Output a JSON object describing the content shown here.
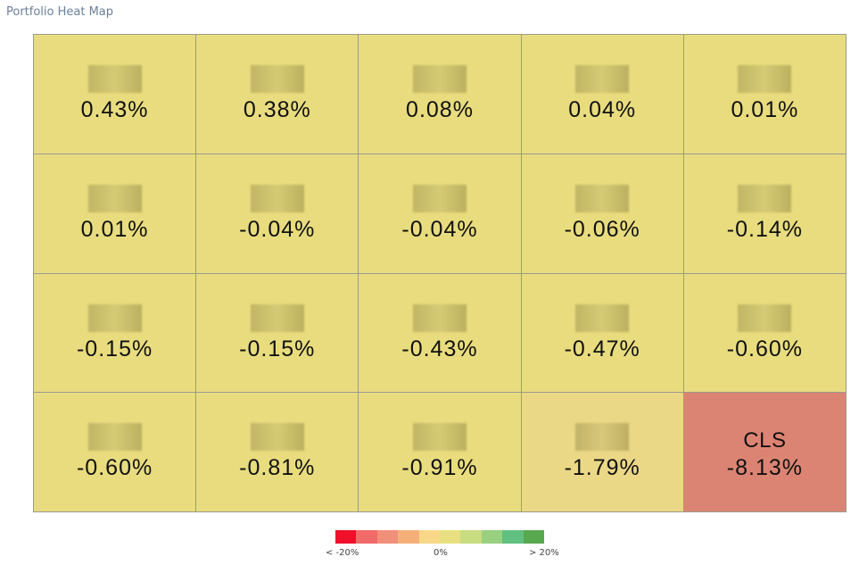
{
  "title": "Portfolio Heat Map",
  "chart_data": {
    "type": "heatmap",
    "rows": 4,
    "cols": 5,
    "tiles": [
      {
        "label": "",
        "value": "0.43%",
        "color": "#e8dc7e"
      },
      {
        "label": "",
        "value": "0.38%",
        "color": "#e8dc7e"
      },
      {
        "label": "",
        "value": "0.08%",
        "color": "#e8dc7e"
      },
      {
        "label": "",
        "value": "0.04%",
        "color": "#e8dc7e"
      },
      {
        "label": "",
        "value": "0.01%",
        "color": "#e8dc7e"
      },
      {
        "label": "",
        "value": "0.01%",
        "color": "#e8dc7e"
      },
      {
        "label": "",
        "value": "-0.04%",
        "color": "#e8dc7e"
      },
      {
        "label": "",
        "value": "-0.04%",
        "color": "#e8dc7e"
      },
      {
        "label": "",
        "value": "-0.06%",
        "color": "#e8dc7e"
      },
      {
        "label": "",
        "value": "-0.14%",
        "color": "#e8dc7e"
      },
      {
        "label": "",
        "value": "-0.15%",
        "color": "#e8dc7e"
      },
      {
        "label": "",
        "value": "-0.15%",
        "color": "#e8dc7e"
      },
      {
        "label": "",
        "value": "-0.43%",
        "color": "#e8dc7e"
      },
      {
        "label": "",
        "value": "-0.47%",
        "color": "#e8dc7e"
      },
      {
        "label": "",
        "value": "-0.60%",
        "color": "#e8dc7e"
      },
      {
        "label": "",
        "value": "-0.60%",
        "color": "#e8dc7e"
      },
      {
        "label": "",
        "value": "-0.81%",
        "color": "#e8dc7e"
      },
      {
        "label": "",
        "value": "-0.91%",
        "color": "#e8dc7e"
      },
      {
        "label": "",
        "value": "-1.79%",
        "color": "#ebd886"
      },
      {
        "label": "CLS",
        "value": "-8.13%",
        "color": "#dc8473"
      }
    ]
  },
  "legend": {
    "colors": [
      "#f0102a",
      "#f06a6a",
      "#f0907a",
      "#f5b07a",
      "#f8d888",
      "#e8e080",
      "#c8dc80",
      "#98d080",
      "#60c080",
      "#58a850"
    ],
    "min_label": "< -20%",
    "mid_label": "0%",
    "max_label": "> 20%"
  }
}
